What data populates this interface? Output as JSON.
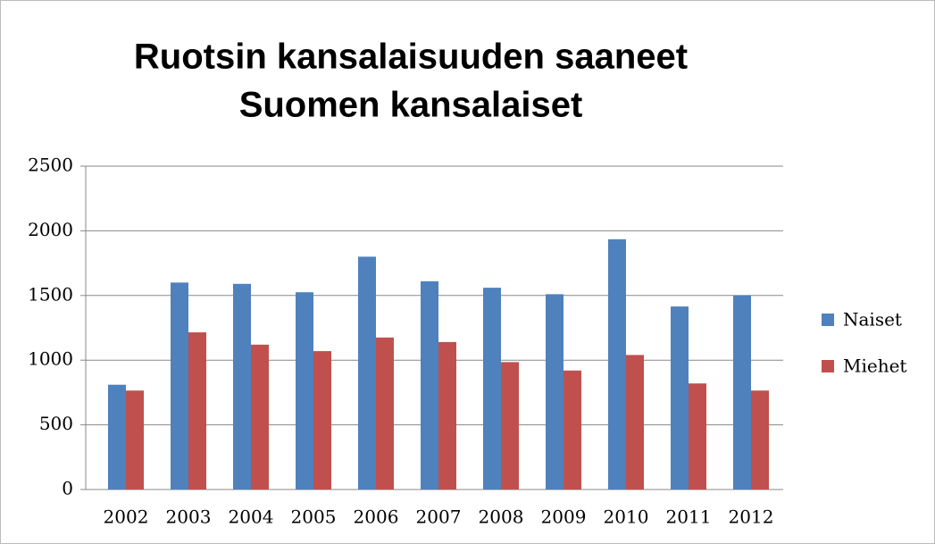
{
  "chart_data": {
    "type": "bar",
    "title": [
      "Ruotsin kansalaisuuden saaneet",
      "Suomen kansalaiset"
    ],
    "categories": [
      "2002",
      "2003",
      "2004",
      "2005",
      "2006",
      "2007",
      "2008",
      "2009",
      "2010",
      "2011",
      "2012"
    ],
    "series": [
      {
        "name": "Naiset",
        "color": "#4f81bd",
        "values": [
          810,
          1600,
          1590,
          1525,
          1800,
          1610,
          1560,
          1510,
          1935,
          1415,
          1500
        ]
      },
      {
        "name": "Miehet",
        "color": "#c0504d",
        "values": [
          765,
          1215,
          1120,
          1070,
          1175,
          1140,
          985,
          920,
          1040,
          820,
          765
        ]
      }
    ],
    "ylim": [
      0,
      2500
    ],
    "yticks": [
      0,
      500,
      1000,
      1500,
      2000,
      2500
    ],
    "grid": true,
    "legend": "right"
  }
}
